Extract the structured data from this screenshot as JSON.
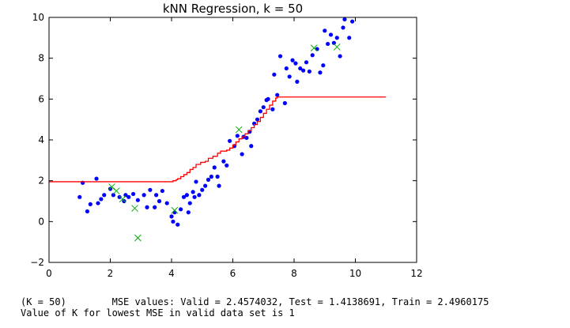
{
  "chart_data": {
    "type": "scatter",
    "title": "kNN Regression, k = 50",
    "xlabel": "",
    "ylabel": "",
    "xlim": [
      0,
      12
    ],
    "ylim": [
      -2,
      10
    ],
    "xticks": [
      "0",
      "2",
      "4",
      "6",
      "8",
      "10",
      "12"
    ],
    "yticks": [
      "−2",
      "0",
      "2",
      "4",
      "6",
      "8",
      "10"
    ],
    "xtick_values": [
      0,
      2,
      4,
      6,
      8,
      10,
      12
    ],
    "ytick_values": [
      -2,
      0,
      2,
      4,
      6,
      8,
      10
    ],
    "grid": false,
    "series": [
      {
        "marker": "dot",
        "color": "#0000ff",
        "points": [
          [
            1.0,
            1.2
          ],
          [
            1.1,
            1.9
          ],
          [
            1.25,
            0.5
          ],
          [
            1.35,
            0.85
          ],
          [
            1.55,
            2.1
          ],
          [
            1.6,
            0.9
          ],
          [
            1.7,
            1.1
          ],
          [
            1.8,
            1.3
          ],
          [
            2.0,
            1.6
          ],
          [
            2.1,
            1.3
          ],
          [
            2.3,
            1.2
          ],
          [
            2.45,
            1.0
          ],
          [
            2.5,
            1.3
          ],
          [
            2.6,
            1.2
          ],
          [
            2.75,
            1.35
          ],
          [
            2.9,
            1.05
          ],
          [
            3.1,
            1.3
          ],
          [
            3.2,
            0.7
          ],
          [
            3.3,
            1.55
          ],
          [
            3.45,
            0.7
          ],
          [
            3.5,
            1.3
          ],
          [
            3.6,
            1.0
          ],
          [
            3.7,
            1.5
          ],
          [
            3.85,
            0.9
          ],
          [
            4.0,
            0.25
          ],
          [
            4.05,
            0.0
          ],
          [
            4.1,
            0.45
          ],
          [
            4.2,
            -0.15
          ],
          [
            4.3,
            0.6
          ],
          [
            4.4,
            1.2
          ],
          [
            4.5,
            1.3
          ],
          [
            4.55,
            0.45
          ],
          [
            4.6,
            0.9
          ],
          [
            4.7,
            1.45
          ],
          [
            4.75,
            1.2
          ],
          [
            4.8,
            1.95
          ],
          [
            4.9,
            1.3
          ],
          [
            5.0,
            1.55
          ],
          [
            5.1,
            1.75
          ],
          [
            5.2,
            2.05
          ],
          [
            5.3,
            2.2
          ],
          [
            5.4,
            2.65
          ],
          [
            5.5,
            2.2
          ],
          [
            5.55,
            1.75
          ],
          [
            5.7,
            2.95
          ],
          [
            5.8,
            2.75
          ],
          [
            5.9,
            3.95
          ],
          [
            6.05,
            3.7
          ],
          [
            6.15,
            4.2
          ],
          [
            6.3,
            3.3
          ],
          [
            6.35,
            4.15
          ],
          [
            6.45,
            4.1
          ],
          [
            6.55,
            4.4
          ],
          [
            6.6,
            3.7
          ],
          [
            6.7,
            4.8
          ],
          [
            6.8,
            5.0
          ],
          [
            6.9,
            5.4
          ],
          [
            7.0,
            5.6
          ],
          [
            7.1,
            5.95
          ],
          [
            7.15,
            6.0
          ],
          [
            7.3,
            5.5
          ],
          [
            7.35,
            7.2
          ],
          [
            7.45,
            6.2
          ],
          [
            7.55,
            8.1
          ],
          [
            7.7,
            5.8
          ],
          [
            7.75,
            7.5
          ],
          [
            7.85,
            7.1
          ],
          [
            7.95,
            7.9
          ],
          [
            8.05,
            7.75
          ],
          [
            8.1,
            6.85
          ],
          [
            8.2,
            7.5
          ],
          [
            8.3,
            7.4
          ],
          [
            8.4,
            7.8
          ],
          [
            8.5,
            7.35
          ],
          [
            8.6,
            8.15
          ],
          [
            8.75,
            8.45
          ],
          [
            8.85,
            7.3
          ],
          [
            8.95,
            7.65
          ],
          [
            9.0,
            9.35
          ],
          [
            9.1,
            8.7
          ],
          [
            9.2,
            9.15
          ],
          [
            9.3,
            8.75
          ],
          [
            9.4,
            9.0
          ],
          [
            9.5,
            8.1
          ],
          [
            9.6,
            9.5
          ],
          [
            9.65,
            9.9
          ],
          [
            9.8,
            9.0
          ],
          [
            9.9,
            9.8
          ]
        ]
      },
      {
        "marker": "x",
        "color": "#00aa00",
        "points": [
          [
            2.05,
            1.7
          ],
          [
            2.2,
            1.5
          ],
          [
            2.4,
            1.1
          ],
          [
            2.8,
            0.65
          ],
          [
            2.9,
            -0.8
          ],
          [
            4.1,
            0.55
          ],
          [
            6.2,
            4.5
          ],
          [
            8.65,
            8.5
          ],
          [
            9.4,
            8.55
          ]
        ]
      },
      {
        "marker": "step-line",
        "color": "#ff0000",
        "points": [
          [
            0.0,
            1.95
          ],
          [
            4.0,
            1.95
          ],
          [
            4.05,
            2.0
          ],
          [
            4.15,
            2.05
          ],
          [
            4.2,
            2.1
          ],
          [
            4.3,
            2.2
          ],
          [
            4.4,
            2.3
          ],
          [
            4.5,
            2.4
          ],
          [
            4.6,
            2.55
          ],
          [
            4.7,
            2.65
          ],
          [
            4.8,
            2.8
          ],
          [
            4.95,
            2.9
          ],
          [
            5.1,
            2.95
          ],
          [
            5.2,
            3.1
          ],
          [
            5.35,
            3.2
          ],
          [
            5.5,
            3.35
          ],
          [
            5.6,
            3.45
          ],
          [
            5.8,
            3.5
          ],
          [
            5.9,
            3.6
          ],
          [
            6.0,
            3.75
          ],
          [
            6.1,
            3.9
          ],
          [
            6.2,
            4.05
          ],
          [
            6.3,
            4.15
          ],
          [
            6.4,
            4.3
          ],
          [
            6.5,
            4.45
          ],
          [
            6.6,
            4.6
          ],
          [
            6.7,
            4.75
          ],
          [
            6.8,
            4.9
          ],
          [
            6.9,
            5.1
          ],
          [
            7.0,
            5.3
          ],
          [
            7.1,
            5.5
          ],
          [
            7.2,
            5.7
          ],
          [
            7.3,
            5.9
          ],
          [
            7.4,
            6.05
          ],
          [
            7.45,
            6.1
          ],
          [
            11.0,
            6.1
          ]
        ]
      }
    ]
  },
  "console": {
    "line1": "(K = 50)        MSE values: Valid = 2.4574032, Test = 1.4138691, Train = 2.4960175",
    "line2": "Value of K for lowest MSE in valid data set is 1"
  }
}
